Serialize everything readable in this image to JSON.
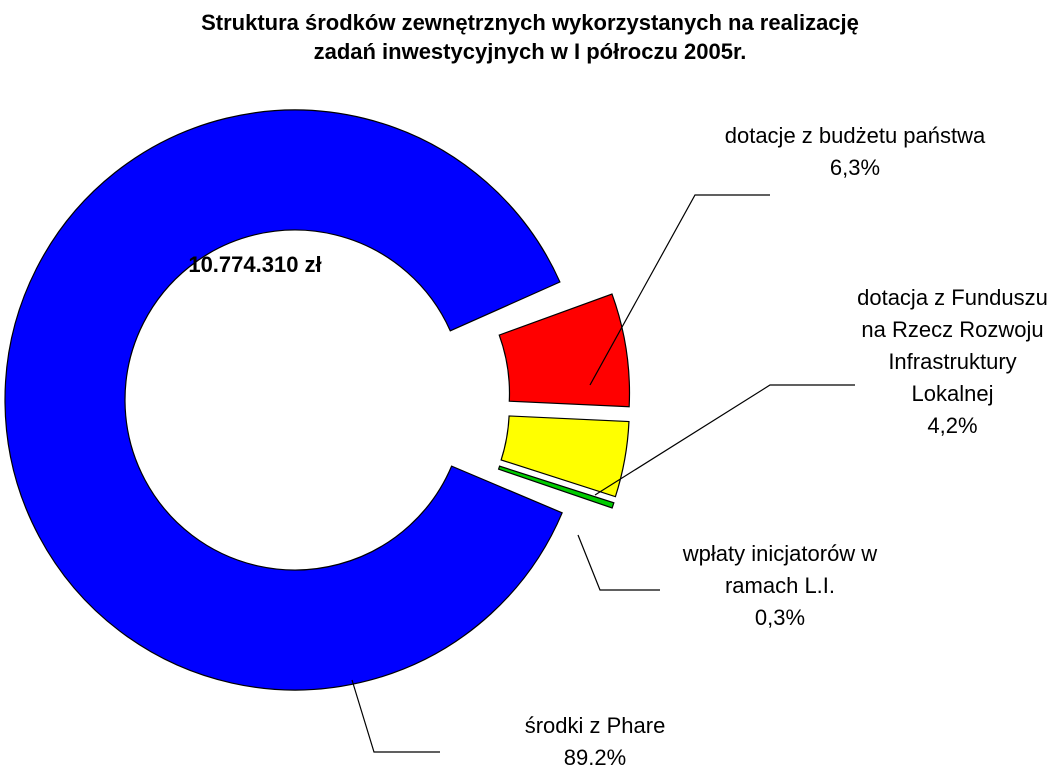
{
  "chart_data": {
    "type": "donut",
    "title": "Struktura środków zewnętrznych wykorzystanych na realizację zadań inwestycyjnych w I półroczu 2005r.",
    "center_label": "10.774.310 zł",
    "categories": [
      "dotacje z budżetu państwa",
      "dotacja z Funduszu na Rzecz Rozwoju Infrastruktury Lokalnej",
      "wpłaty inicjatorów w ramach L.I.",
      "środki z Phare"
    ],
    "values": [
      6.3,
      4.2,
      0.3,
      89.2
    ],
    "value_labels": [
      "6,3%",
      "4,2%",
      "0,3%",
      "89.2%"
    ],
    "colors": [
      "#ff0000",
      "#ffff00",
      "#00cc00",
      "#0000ff"
    ],
    "exploded": [
      true,
      true,
      true,
      false
    ]
  }
}
